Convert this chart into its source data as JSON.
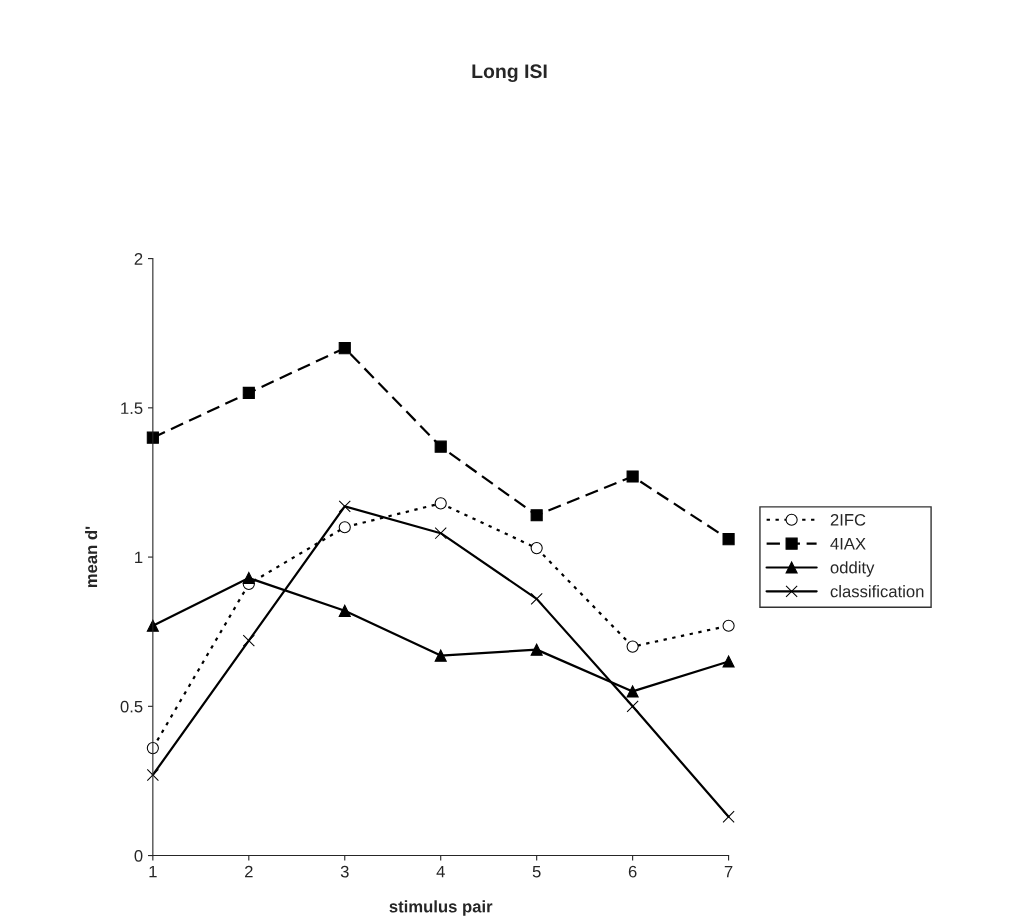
{
  "chart_data": {
    "type": "line",
    "title": "Long ISI",
    "xlabel": "stimulus pair",
    "ylabel": "mean d'",
    "categories": [
      "1",
      "2",
      "3",
      "4",
      "5",
      "6",
      "7"
    ],
    "ylim": [
      0,
      2
    ],
    "yticks": [
      0,
      0.5,
      1,
      1.5,
      2
    ],
    "grid": false,
    "legend": "right",
    "series": [
      {
        "name": "2IFC",
        "color": "#000000",
        "marker": "circle",
        "line_style": "dotted",
        "values": [
          0.36,
          0.91,
          1.1,
          1.18,
          1.03,
          0.7,
          0.77
        ]
      },
      {
        "name": "4IAX",
        "color": "#000000",
        "marker": "square",
        "line_style": "dashed",
        "values": [
          1.4,
          1.55,
          1.7,
          1.37,
          1.14,
          1.27,
          1.06
        ]
      },
      {
        "name": "oddity",
        "color": "#000000",
        "marker": "triangle",
        "line_style": "solid",
        "values": [
          0.77,
          0.93,
          0.82,
          0.67,
          0.69,
          0.55,
          0.65
        ]
      },
      {
        "name": "classification",
        "color": "#000000",
        "marker": "cross",
        "line_style": "solid",
        "values": [
          0.27,
          0.72,
          1.17,
          1.08,
          0.86,
          0.5,
          0.13
        ]
      }
    ]
  }
}
